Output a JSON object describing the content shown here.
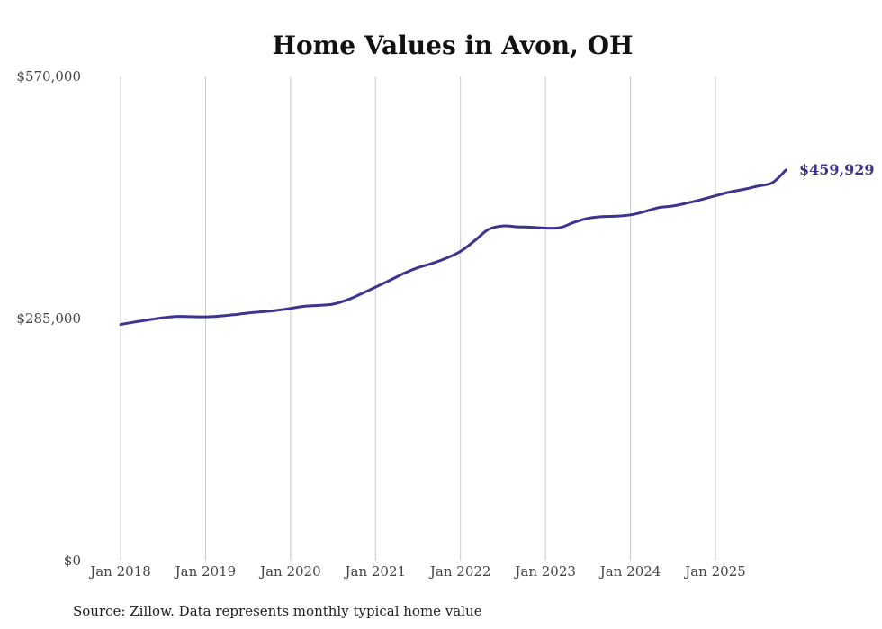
{
  "chart_data": {
    "type": "line",
    "title": "Home Values in Avon, OH",
    "xlabel": "",
    "ylabel": "",
    "ylim": [
      0,
      570000
    ],
    "y_ticks": [
      {
        "value": 0,
        "label": "$0"
      },
      {
        "value": 285000,
        "label": "$285,000"
      },
      {
        "value": 570000,
        "label": "$570,000"
      }
    ],
    "x_ticks": [
      {
        "value": 2018.0,
        "label": "Jan 2018"
      },
      {
        "value": 2019.0,
        "label": "Jan 2019"
      },
      {
        "value": 2020.0,
        "label": "Jan 2020"
      },
      {
        "value": 2021.0,
        "label": "Jan 2021"
      },
      {
        "value": 2022.0,
        "label": "Jan 2022"
      },
      {
        "value": 2023.0,
        "label": "Jan 2023"
      },
      {
        "value": 2024.0,
        "label": "Jan 2024"
      },
      {
        "value": 2025.0,
        "label": "Jan 2025"
      }
    ],
    "xlim": [
      2017.6,
      2026.3
    ],
    "grid": "vertical",
    "line_color": "#3b3590",
    "series": [
      {
        "name": "Typical home value",
        "points": [
          [
            2018.0,
            278000
          ],
          [
            2018.17,
            281000
          ],
          [
            2018.33,
            283500
          ],
          [
            2018.5,
            286000
          ],
          [
            2018.67,
            287500
          ],
          [
            2018.83,
            287200
          ],
          [
            2019.0,
            287000
          ],
          [
            2019.17,
            288000
          ],
          [
            2019.33,
            289500
          ],
          [
            2019.5,
            291500
          ],
          [
            2019.67,
            293000
          ],
          [
            2019.83,
            294500
          ],
          [
            2020.0,
            297000
          ],
          [
            2020.17,
            299500
          ],
          [
            2020.33,
            300500
          ],
          [
            2020.5,
            302000
          ],
          [
            2020.67,
            307000
          ],
          [
            2020.83,
            314000
          ],
          [
            2021.0,
            322000
          ],
          [
            2021.17,
            330000
          ],
          [
            2021.33,
            338000
          ],
          [
            2021.5,
            345000
          ],
          [
            2021.67,
            350000
          ],
          [
            2021.83,
            356000
          ],
          [
            2022.0,
            364000
          ],
          [
            2022.17,
            377000
          ],
          [
            2022.33,
            390000
          ],
          [
            2022.5,
            394000
          ],
          [
            2022.67,
            393000
          ],
          [
            2022.83,
            392500
          ],
          [
            2023.0,
            391500
          ],
          [
            2023.17,
            392000
          ],
          [
            2023.33,
            398000
          ],
          [
            2023.5,
            403000
          ],
          [
            2023.67,
            405000
          ],
          [
            2023.83,
            405500
          ],
          [
            2024.0,
            407000
          ],
          [
            2024.17,
            411000
          ],
          [
            2024.33,
            415500
          ],
          [
            2024.5,
            417500
          ],
          [
            2024.67,
            421000
          ],
          [
            2024.83,
            425000
          ],
          [
            2025.0,
            429500
          ],
          [
            2025.17,
            434000
          ],
          [
            2025.33,
            437000
          ],
          [
            2025.5,
            441000
          ],
          [
            2025.67,
            445000
          ],
          [
            2025.83,
            459929
          ]
        ]
      }
    ],
    "end_label": "$459,929",
    "end_value": 459929
  },
  "footer": {
    "source": "Source: Zillow. Data represents monthly typical home value"
  }
}
